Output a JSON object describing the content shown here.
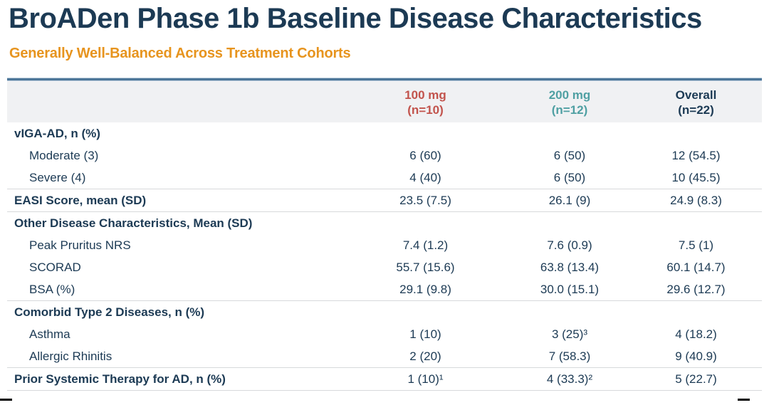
{
  "slide": {
    "title": "BroADen Phase 1b Baseline Disease Characteristics",
    "subtitle": "Generally Well-Balanced Across Treatment Cohorts"
  },
  "colors": {
    "navy": "#1c3a54",
    "orange": "#e7941e",
    "red": "#c2534c",
    "teal": "#4fa0a3",
    "header_bg": "#f0f1f3",
    "accent": "#4d7699",
    "divider": "#d7d9db"
  },
  "table": {
    "columns": [
      {
        "label": "",
        "sub": ""
      },
      {
        "label": "100 mg",
        "sub": "(n=10)"
      },
      {
        "label": "200 mg",
        "sub": "(n=12)"
      },
      {
        "label": "Overall",
        "sub": "(n=22)"
      }
    ],
    "rows": [
      {
        "label": "vIGA-AD, n (%)",
        "style": "section",
        "values": [
          "",
          "",
          ""
        ]
      },
      {
        "label": "Moderate (3)",
        "style": "indent",
        "values": [
          "6 (60)",
          "6 (50)",
          "12 (54.5)"
        ]
      },
      {
        "label": "Severe (4)",
        "style": "indent",
        "values": [
          "4 (40)",
          "6 (50)",
          "10 (45.5)"
        ]
      },
      {
        "label": "EASI Score, mean (SD)",
        "style": "section",
        "values": [
          "23.5 (7.5)",
          "26.1 (9)",
          "24.9 (8.3)"
        ]
      },
      {
        "label": "Other Disease Characteristics, Mean (SD)",
        "style": "section",
        "values": [
          "",
          "",
          ""
        ]
      },
      {
        "label": "Peak Pruritus NRS",
        "style": "indent",
        "values": [
          "7.4 (1.2)",
          "7.6 (0.9)",
          "7.5 (1)"
        ]
      },
      {
        "label": "SCORAD",
        "style": "indent",
        "values": [
          "55.7 (15.6)",
          "63.8 (13.4)",
          "60.1 (14.7)"
        ]
      },
      {
        "label": "BSA (%)",
        "style": "indent",
        "values": [
          "29.1 (9.8)",
          "30.0 (15.1)",
          "29.6 (12.7)"
        ]
      },
      {
        "label": "Comorbid Type 2 Diseases, n (%)",
        "style": "section",
        "values": [
          "",
          "",
          ""
        ]
      },
      {
        "label": "Asthma",
        "style": "indent",
        "values": [
          "1 (10)",
          "3 (25)³",
          "4 (18.2)"
        ]
      },
      {
        "label": "Allergic Rhinitis",
        "style": "indent",
        "values": [
          "2 (20)",
          "7 (58.3)",
          "9 (40.9)"
        ]
      },
      {
        "label": "Prior Systemic Therapy for AD, n (%)",
        "style": "section",
        "values": [
          "1 (10)¹",
          "4 (33.3)²",
          "5 (22.7)"
        ]
      }
    ]
  }
}
